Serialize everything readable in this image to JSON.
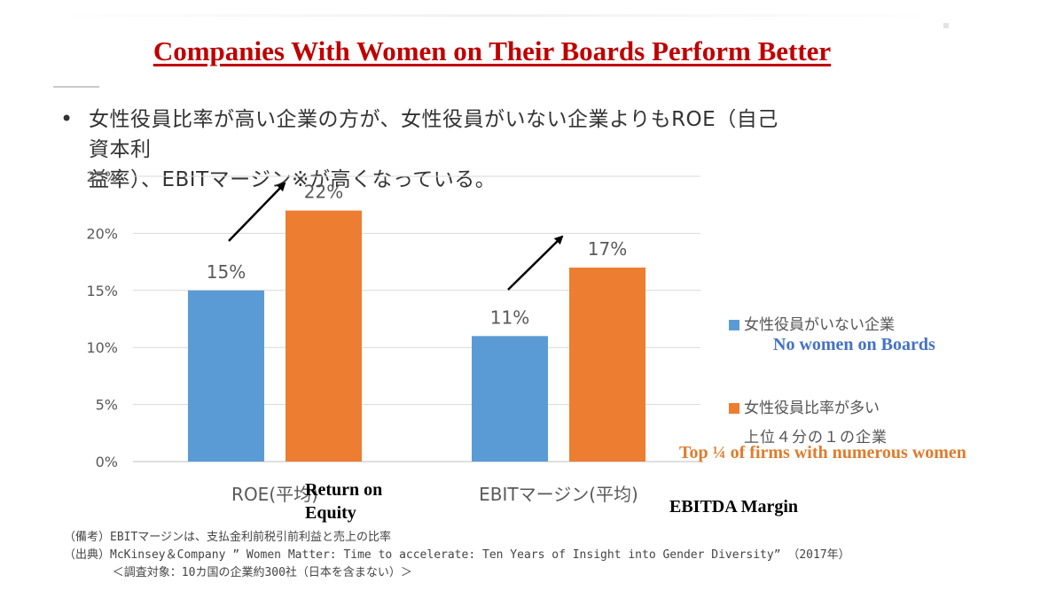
{
  "slide": {
    "title": "Companies With Women on Their Boards Perform Better",
    "bullet": "女性役員比率が高い企業の方が、女性役員がいない企業よりもROE（自己資本利益率）、EBITマージン※が高くなっている。",
    "bullet_line1": "女性役員比率が高い企業の方が、女性役員がいない企業よりもROE（自己資本利",
    "bullet_line2": "益率）、EBITマージン※が高くなっている。"
  },
  "annotations": {
    "roe_line1": "Return on",
    "roe_line2": "Equity",
    "ebitda": "EBITDA Margin",
    "no_women": "No women on Boards",
    "top_quarter": "Top ¼ of firms with numerous women"
  },
  "legend": {
    "series1": "女性役員がいない企業",
    "series2_line1": "女性役員比率が多い",
    "series2_line2": "上位４分の１の企業"
  },
  "notes": {
    "line1": "（備考）EBITマージンは、支払金利前税引前利益と売上の比率",
    "line2": "（出典）McKinsey＆Company ” Women Matter: Time to accelerate: Ten Years of Insight into Gender Diversity” （2017年）",
    "line3": "       ＜調査対象：10カ国の企業約300社（日本を含まない）＞"
  },
  "colors": {
    "series1": "#5b9bd5",
    "series2": "#ed7d31",
    "title": "#c00000",
    "no_women_text": "#4472c4",
    "top_quarter_text": "#e07b2b"
  },
  "chart_data": {
    "type": "bar",
    "categories": [
      "ROE(平均)",
      "EBITマージン(平均)"
    ],
    "series": [
      {
        "name": "女性役員がいない企業",
        "values": [
          15,
          11
        ],
        "labels": [
          "15%",
          "11%"
        ],
        "color": "#5b9bd5"
      },
      {
        "name": "女性役員比率が多い 上位４分の１の企業",
        "values": [
          22,
          17
        ],
        "labels": [
          "22%",
          "17%"
        ],
        "color": "#ed7d31"
      }
    ],
    "yticks": [
      "0%",
      "5%",
      "10%",
      "15%",
      "20%",
      "25%"
    ],
    "ylim": [
      0,
      25
    ],
    "grid": true,
    "legend_position": "right"
  }
}
